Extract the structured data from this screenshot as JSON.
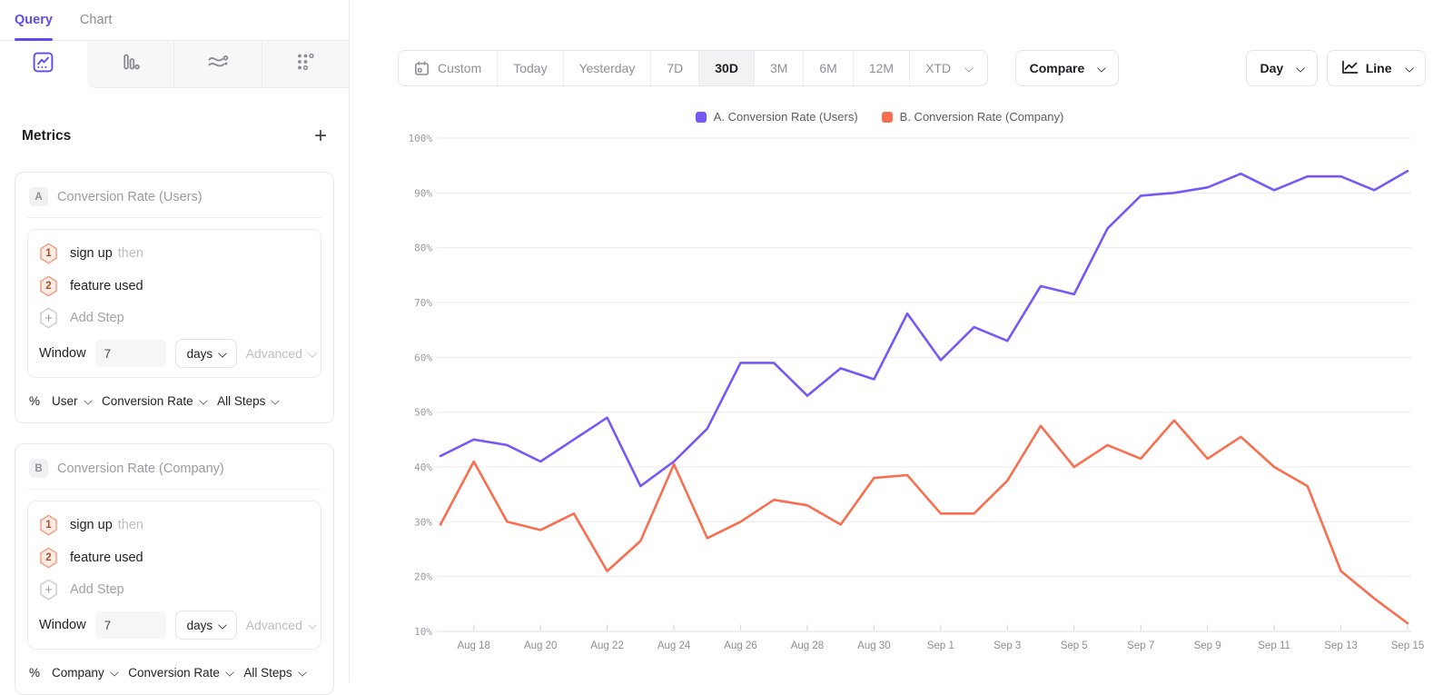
{
  "sidebar": {
    "tabs": [
      {
        "label": "Query",
        "active": true
      },
      {
        "label": "Chart",
        "active": false
      }
    ],
    "icon_tabs": [
      "line-chart",
      "bar-chart",
      "flow",
      "retention-grid"
    ],
    "metrics_header": {
      "title": "Metrics",
      "add_label": "+"
    },
    "cards": [
      {
        "badge": "A",
        "title": "Conversion Rate (Users)",
        "steps": [
          {
            "num": "1",
            "label": "sign up",
            "suffix": "then"
          },
          {
            "num": "2",
            "label": "feature used",
            "suffix": ""
          }
        ],
        "add_step_label": "Add Step",
        "add_icon": "+",
        "window": {
          "label": "Window",
          "value": "7",
          "unit": "days",
          "advanced_label": "Advanced"
        },
        "measure": {
          "prefix": "%",
          "entity": "User",
          "metric": "Conversion Rate",
          "scope": "All Steps"
        }
      },
      {
        "badge": "B",
        "title": "Conversion Rate (Company)",
        "steps": [
          {
            "num": "1",
            "label": "sign up",
            "suffix": "then"
          },
          {
            "num": "2",
            "label": "feature used",
            "suffix": ""
          }
        ],
        "add_step_label": "Add Step",
        "add_icon": "+",
        "window": {
          "label": "Window",
          "value": "7",
          "unit": "days",
          "advanced_label": "Advanced"
        },
        "measure": {
          "prefix": "%",
          "entity": "Company",
          "metric": "Conversion Rate",
          "scope": "All Steps"
        }
      }
    ]
  },
  "toolbar": {
    "ranges": [
      "Custom",
      "Today",
      "Yesterday",
      "7D",
      "30D",
      "3M",
      "6M",
      "12M",
      "XTD"
    ],
    "active_range": "30D",
    "compare_label": "Compare",
    "granularity_label": "Day",
    "chart_type_label": "Line"
  },
  "legend": [
    {
      "label": "A. Conversion Rate (Users)",
      "color": "#7758F6"
    },
    {
      "label": "B. Conversion Rate (Company)",
      "color": "#FA6E50"
    }
  ],
  "chart_data": {
    "type": "line",
    "title": "",
    "xlabel": "",
    "ylabel": "",
    "ylim": [
      10,
      100
    ],
    "y_tick_step": 10,
    "y_tick_suffix": "%",
    "grid": true,
    "legend_position": "top-center",
    "categories": [
      "Aug 17",
      "Aug 18",
      "Aug 19",
      "Aug 20",
      "Aug 21",
      "Aug 22",
      "Aug 23",
      "Aug 24",
      "Aug 25",
      "Aug 26",
      "Aug 27",
      "Aug 28",
      "Aug 29",
      "Aug 30",
      "Aug 31",
      "Sep 1",
      "Sep 2",
      "Sep 3",
      "Sep 4",
      "Sep 5",
      "Sep 6",
      "Sep 7",
      "Sep 8",
      "Sep 9",
      "Sep 10",
      "Sep 11",
      "Sep 12",
      "Sep 13",
      "Sep 14",
      "Sep 15"
    ],
    "x_tick_labels": [
      "Aug 18",
      "Aug 20",
      "Aug 22",
      "Aug 24",
      "Aug 26",
      "Aug 28",
      "Aug 30",
      "Sep 1",
      "Sep 3",
      "Sep 5",
      "Sep 7",
      "Sep 9",
      "Sep 11",
      "Sep 13",
      "Sep 15"
    ],
    "series": [
      {
        "name": "A. Conversion Rate (Users)",
        "color": "#7758F6",
        "values": [
          42,
          45,
          44,
          41,
          45,
          49,
          36.5,
          41,
          47,
          59,
          59,
          53,
          58,
          56,
          68,
          59.5,
          65.5,
          63,
          73,
          71.5,
          83.5,
          89.5,
          90,
          91,
          93.5,
          90.5,
          93,
          93,
          90.5,
          94
        ]
      },
      {
        "name": "B. Conversion Rate (Company)",
        "color": "#FA6E50",
        "values": [
          29.5,
          41,
          30,
          28.5,
          31.5,
          21,
          26.5,
          40.5,
          27,
          30,
          34,
          33,
          29.5,
          38,
          38.5,
          31.5,
          31.5,
          37.5,
          47.5,
          40,
          44,
          41.5,
          48.5,
          41.5,
          45.5,
          40,
          36.5,
          21,
          16,
          11.5
        ]
      }
    ]
  }
}
